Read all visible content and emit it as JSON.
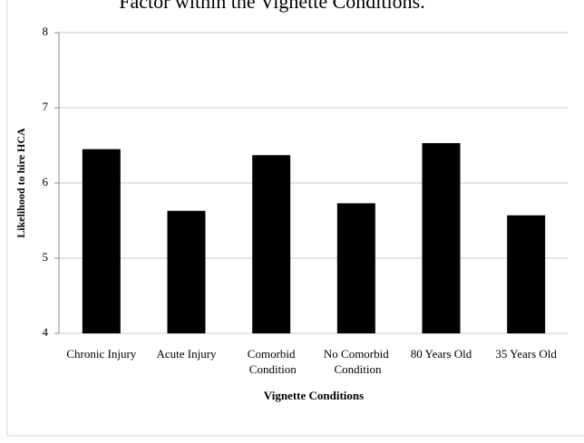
{
  "chart_data": {
    "type": "bar",
    "title": "Factor within the Vignette Conditions.",
    "categories": [
      "Chronic Injury",
      "Acute Injury",
      "Comorbid Condition",
      "No Comorbid Condition",
      "80 Years Old",
      "35 Years Old"
    ],
    "values": [
      6.45,
      5.63,
      6.37,
      5.73,
      6.53,
      5.57
    ],
    "color": "#000000",
    "ylim": [
      4,
      8
    ],
    "yticks": [
      4,
      5,
      6,
      7,
      8
    ],
    "grid": true,
    "x_label": "Vignette Conditions",
    "y_label": "Likelihood to hire HCA"
  }
}
